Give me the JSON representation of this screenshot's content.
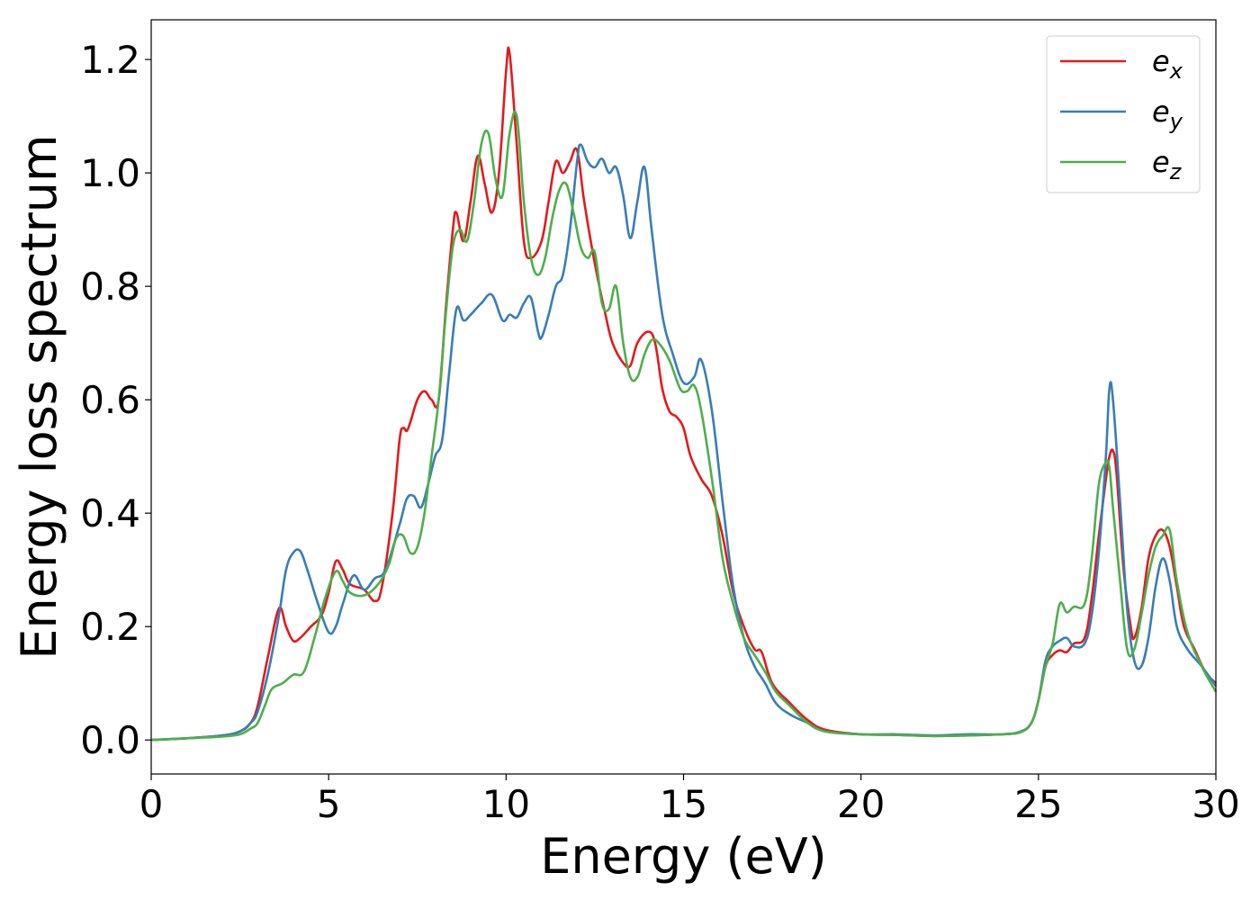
{
  "chart_data": {
    "type": "line",
    "xlabel": "Energy (eV)",
    "ylabel": "Energy loss spectrum",
    "xlim": [
      0,
      30
    ],
    "ylim": [
      -0.06,
      1.27
    ],
    "xticks": [
      0,
      5,
      10,
      15,
      20,
      25,
      30
    ],
    "xtick_labels": [
      "0",
      "5",
      "10",
      "15",
      "20",
      "25",
      "30"
    ],
    "yticks": [
      0.0,
      0.2,
      0.4,
      0.6,
      0.8,
      1.0,
      1.2
    ],
    "ytick_labels": [
      "0.0",
      "0.2",
      "0.4",
      "0.6",
      "0.8",
      "1.0",
      "1.2"
    ],
    "grid": false,
    "legend_position": "top-right",
    "series": [
      {
        "name": "e_x",
        "label_main": "e",
        "label_sub": "x",
        "color": "#e41a1c",
        "x": [
          0,
          1,
          2,
          2.5,
          2.8,
          3.0,
          3.3,
          3.6,
          3.8,
          4.0,
          4.2,
          4.5,
          4.8,
          5.0,
          5.2,
          5.4,
          5.6,
          6.0,
          6.3,
          6.5,
          6.8,
          7.0,
          7.1,
          7.2,
          7.3,
          7.5,
          7.7,
          7.9,
          8.1,
          8.3,
          8.5,
          8.6,
          8.8,
          9.0,
          9.2,
          9.4,
          9.6,
          9.8,
          10.0,
          10.1,
          10.3,
          10.5,
          10.7,
          11.0,
          11.2,
          11.4,
          11.6,
          11.8,
          12.0,
          12.2,
          12.5,
          12.8,
          13.0,
          13.3,
          13.5,
          13.7,
          14.0,
          14.2,
          14.4,
          14.6,
          14.8,
          15.0,
          15.2,
          15.5,
          15.8,
          16.1,
          16.4,
          16.7,
          17.0,
          17.2,
          17.5,
          18.0,
          18.5,
          19.0,
          20.0,
          21.0,
          22.0,
          23.0,
          24.0,
          24.5,
          24.8,
          25.0,
          25.2,
          25.4,
          25.6,
          25.8,
          26.0,
          26.3,
          26.5,
          26.7,
          26.9,
          27.0,
          27.1,
          27.2,
          27.4,
          27.6,
          27.7,
          27.9,
          28.1,
          28.3,
          28.5,
          28.7,
          28.9,
          29.1,
          29.4,
          29.7,
          30.0
        ],
        "y": [
          0.0,
          0.003,
          0.008,
          0.015,
          0.03,
          0.06,
          0.15,
          0.232,
          0.2,
          0.175,
          0.18,
          0.2,
          0.22,
          0.26,
          0.315,
          0.3,
          0.275,
          0.265,
          0.245,
          0.27,
          0.4,
          0.53,
          0.55,
          0.545,
          0.56,
          0.6,
          0.615,
          0.6,
          0.6,
          0.76,
          0.9,
          0.93,
          0.88,
          0.95,
          1.03,
          0.98,
          0.93,
          1.0,
          1.18,
          1.21,
          1.05,
          0.88,
          0.85,
          0.88,
          0.95,
          1.02,
          1.0,
          1.02,
          1.04,
          0.95,
          0.84,
          0.75,
          0.7,
          0.665,
          0.66,
          0.7,
          0.72,
          0.7,
          0.62,
          0.58,
          0.57,
          0.55,
          0.5,
          0.46,
          0.43,
          0.36,
          0.26,
          0.2,
          0.16,
          0.155,
          0.1,
          0.065,
          0.035,
          0.018,
          0.01,
          0.009,
          0.007,
          0.008,
          0.01,
          0.014,
          0.03,
          0.07,
          0.13,
          0.15,
          0.158,
          0.155,
          0.17,
          0.18,
          0.25,
          0.36,
          0.46,
          0.5,
          0.51,
          0.47,
          0.3,
          0.2,
          0.18,
          0.23,
          0.32,
          0.36,
          0.37,
          0.34,
          0.27,
          0.2,
          0.16,
          0.12,
          0.1
        ]
      },
      {
        "name": "e_y",
        "label_main": "e",
        "label_sub": "y",
        "color": "#377eb8",
        "x": [
          0,
          1,
          2,
          2.5,
          2.8,
          3.0,
          3.3,
          3.6,
          3.8,
          4.0,
          4.2,
          4.4,
          4.7,
          5.0,
          5.2,
          5.4,
          5.7,
          6.0,
          6.3,
          6.6,
          7.0,
          7.2,
          7.4,
          7.6,
          7.8,
          8.0,
          8.2,
          8.4,
          8.6,
          8.8,
          9.0,
          9.3,
          9.6,
          9.9,
          10.1,
          10.3,
          10.5,
          10.7,
          10.9,
          11.0,
          11.2,
          11.4,
          11.6,
          11.8,
          12.0,
          12.1,
          12.3,
          12.5,
          12.7,
          12.9,
          13.1,
          13.3,
          13.5,
          13.7,
          13.9,
          14.1,
          14.4,
          14.7,
          15.0,
          15.3,
          15.5,
          15.8,
          16.1,
          16.4,
          16.7,
          17.0,
          17.3,
          17.6,
          18.0,
          18.5,
          19.0,
          20.0,
          21.0,
          22.0,
          23.0,
          24.0,
          24.5,
          24.8,
          25.0,
          25.2,
          25.4,
          25.6,
          25.8,
          26.0,
          26.3,
          26.5,
          26.7,
          26.9,
          27.0,
          27.1,
          27.3,
          27.5,
          27.7,
          27.9,
          28.1,
          28.3,
          28.5,
          28.7,
          28.9,
          29.2,
          29.6,
          30.0
        ],
        "y": [
          0.0,
          0.003,
          0.008,
          0.015,
          0.03,
          0.05,
          0.12,
          0.22,
          0.3,
          0.33,
          0.333,
          0.3,
          0.24,
          0.19,
          0.2,
          0.24,
          0.29,
          0.265,
          0.285,
          0.3,
          0.38,
          0.425,
          0.43,
          0.41,
          0.45,
          0.5,
          0.53,
          0.65,
          0.76,
          0.74,
          0.75,
          0.77,
          0.785,
          0.74,
          0.75,
          0.745,
          0.77,
          0.78,
          0.72,
          0.71,
          0.75,
          0.8,
          0.82,
          0.9,
          1.02,
          1.05,
          1.02,
          1.01,
          1.025,
          1.0,
          1.01,
          0.96,
          0.885,
          0.95,
          1.01,
          0.9,
          0.75,
          0.68,
          0.63,
          0.64,
          0.67,
          0.58,
          0.42,
          0.27,
          0.18,
          0.13,
          0.1,
          0.065,
          0.045,
          0.03,
          0.015,
          0.01,
          0.01,
          0.008,
          0.01,
          0.01,
          0.015,
          0.03,
          0.07,
          0.14,
          0.165,
          0.175,
          0.18,
          0.165,
          0.17,
          0.22,
          0.33,
          0.5,
          0.62,
          0.6,
          0.42,
          0.23,
          0.14,
          0.13,
          0.18,
          0.27,
          0.32,
          0.28,
          0.2,
          0.16,
          0.13,
          0.095
        ]
      },
      {
        "name": "e_z",
        "label_main": "e",
        "label_sub": "z",
        "color": "#4daf4a",
        "x": [
          0,
          1,
          2,
          2.5,
          2.8,
          3.0,
          3.2,
          3.4,
          3.7,
          4.0,
          4.3,
          4.6,
          4.9,
          5.2,
          5.4,
          5.6,
          6.0,
          6.4,
          6.7,
          6.9,
          7.1,
          7.3,
          7.5,
          7.7,
          7.9,
          8.1,
          8.3,
          8.5,
          8.7,
          8.9,
          9.1,
          9.3,
          9.5,
          9.7,
          9.9,
          10.1,
          10.3,
          10.5,
          10.7,
          10.9,
          11.1,
          11.3,
          11.5,
          11.7,
          11.9,
          12.1,
          12.3,
          12.5,
          12.7,
          12.9,
          13.1,
          13.3,
          13.5,
          13.7,
          13.9,
          14.1,
          14.3,
          14.6,
          14.9,
          15.1,
          15.3,
          15.5,
          15.8,
          16.1,
          16.4,
          16.7,
          17.0,
          17.3,
          17.6,
          18.0,
          18.5,
          19.0,
          20.0,
          21.0,
          22.0,
          23.0,
          24.0,
          24.5,
          24.8,
          25.0,
          25.2,
          25.4,
          25.6,
          25.8,
          26.0,
          26.3,
          26.5,
          26.7,
          26.9,
          27.0,
          27.1,
          27.3,
          27.5,
          27.7,
          27.9,
          28.1,
          28.3,
          28.5,
          28.7,
          28.9,
          29.2,
          29.6,
          30.0
        ],
        "y": [
          0.0,
          0.003,
          0.006,
          0.01,
          0.02,
          0.03,
          0.06,
          0.09,
          0.1,
          0.115,
          0.12,
          0.18,
          0.25,
          0.297,
          0.28,
          0.26,
          0.255,
          0.275,
          0.31,
          0.355,
          0.36,
          0.33,
          0.34,
          0.4,
          0.5,
          0.6,
          0.75,
          0.87,
          0.9,
          0.88,
          0.95,
          1.05,
          1.07,
          0.99,
          0.96,
          1.07,
          1.1,
          0.95,
          0.85,
          0.82,
          0.85,
          0.92,
          0.97,
          0.98,
          0.93,
          0.87,
          0.85,
          0.86,
          0.77,
          0.76,
          0.8,
          0.7,
          0.64,
          0.64,
          0.68,
          0.705,
          0.7,
          0.67,
          0.62,
          0.615,
          0.625,
          0.58,
          0.46,
          0.32,
          0.24,
          0.18,
          0.15,
          0.12,
          0.085,
          0.06,
          0.03,
          0.015,
          0.01,
          0.009,
          0.007,
          0.008,
          0.01,
          0.014,
          0.03,
          0.07,
          0.13,
          0.17,
          0.24,
          0.225,
          0.235,
          0.24,
          0.32,
          0.45,
          0.49,
          0.48,
          0.41,
          0.28,
          0.16,
          0.16,
          0.22,
          0.29,
          0.34,
          0.36,
          0.37,
          0.28,
          0.19,
          0.13,
          0.085
        ]
      }
    ]
  }
}
